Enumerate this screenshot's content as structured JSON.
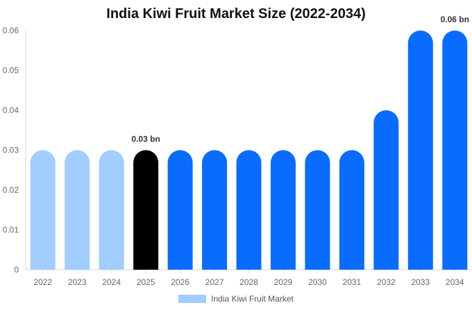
{
  "chart_data": {
    "type": "bar",
    "title": "India Kiwi Fruit Market Size (2022-2034)",
    "categories": [
      "2022",
      "2023",
      "2024",
      "2025",
      "2026",
      "2027",
      "2028",
      "2029",
      "2030",
      "2031",
      "2032",
      "2033",
      "2034"
    ],
    "series": [
      {
        "name": "India Kiwi Fruit Market",
        "values": [
          0.03,
          0.03,
          0.03,
          0.03,
          0.03,
          0.03,
          0.03,
          0.03,
          0.03,
          0.03,
          0.04,
          0.06,
          0.06
        ]
      }
    ],
    "ylim": [
      0,
      0.06
    ],
    "yticks": [
      "0",
      "0.01",
      "0.02",
      "0.03",
      "0.04",
      "0.05",
      "0.06"
    ],
    "data_labels": [
      {
        "category": "2025",
        "text": "0.03 bn"
      },
      {
        "category": "2034",
        "text": "0.06 bn"
      }
    ],
    "bar_colors": [
      "#a1cdff",
      "#a1cdff",
      "#a1cdff",
      "#000000",
      "#0a6cff",
      "#0a6cff",
      "#0a6cff",
      "#0a6cff",
      "#0a6cff",
      "#0a6cff",
      "#0a6cff",
      "#0a6cff",
      "#0a6cff"
    ],
    "legend": {
      "label": "India Kiwi Fruit Market",
      "color": "#a1cdff",
      "position": "bottom"
    },
    "grid": false
  }
}
